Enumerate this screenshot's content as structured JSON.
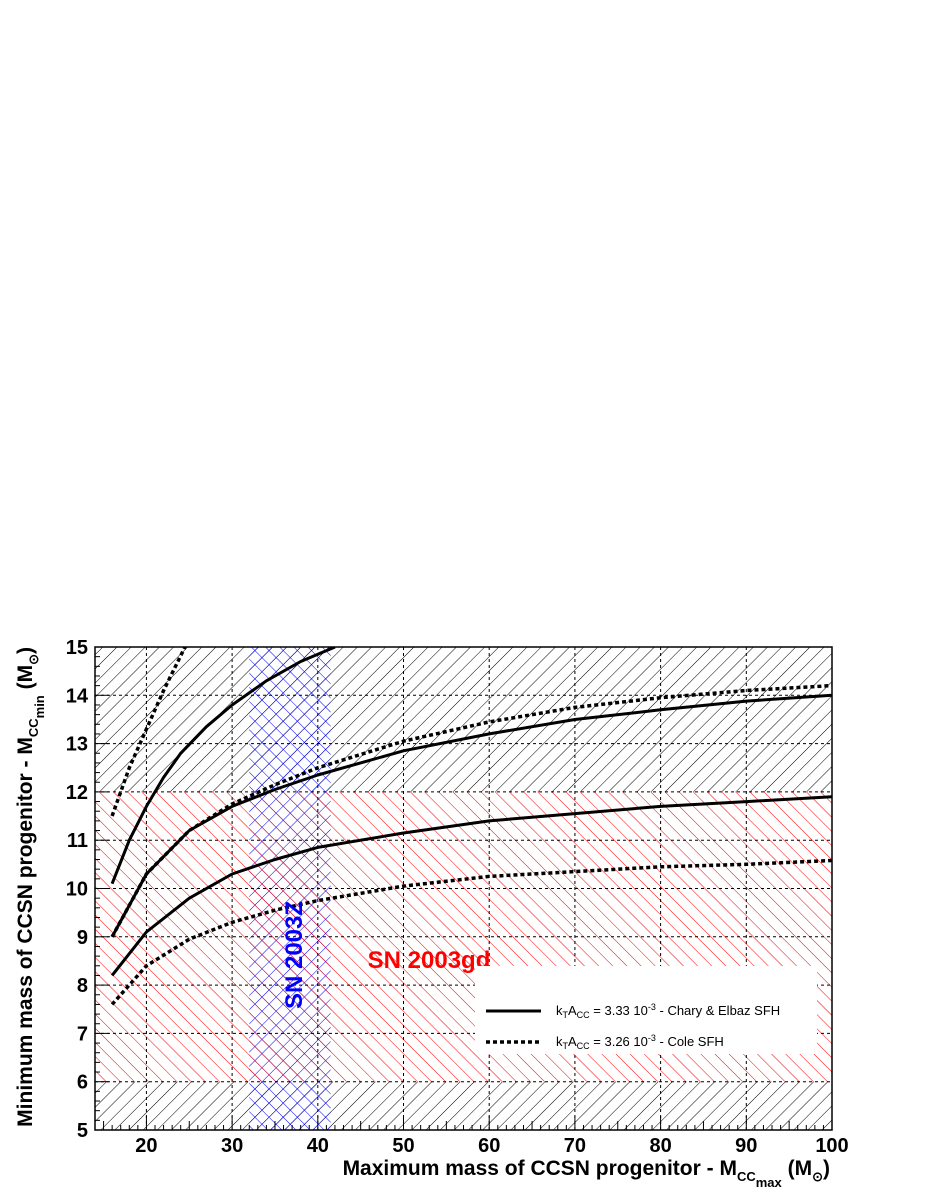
{
  "chart_data": {
    "type": "line",
    "xlabel": {
      "main": "Maximum mass of CCSN progenitor - M",
      "sub": "CC",
      "subsub": "max",
      "unit_open": " (M",
      "unit_sym": "⊙",
      "unit_close": ")"
    },
    "ylabel": {
      "main": "Minimum mass of CCSN progenitor - M",
      "sub": "CC",
      "subsub": "min",
      "unit_open": " (M",
      "unit_sym": "⊙",
      "unit_close": ")"
    },
    "xlim": [
      14,
      100
    ],
    "ylim": [
      5,
      15
    ],
    "xticks": [
      "20",
      "30",
      "40",
      "50",
      "60",
      "70",
      "80",
      "90",
      "100"
    ],
    "yticks": [
      "5",
      "6",
      "7",
      "8",
      "9",
      "10",
      "11",
      "12",
      "13",
      "14",
      "15"
    ],
    "grid": true,
    "legend": {
      "position": "lower-right",
      "entries": [
        {
          "pre": "k",
          "pre_sub": "T",
          "mid": "A",
          "mid_sub": "CC",
          "text": " = 3.33 10",
          "exp": "-3",
          "post": " - Chary & Elbaz SFH",
          "style": "solid"
        },
        {
          "pre": "k",
          "pre_sub": "T",
          "mid": "A",
          "mid_sub": "CC",
          "text": " = 3.26 10",
          "exp": "-3",
          "post": " - Cole SFH",
          "style": "dotted"
        }
      ]
    },
    "bands": [
      {
        "label": "SN 2003Z",
        "orientation": "vertical",
        "x_range": [
          32,
          41.5
        ],
        "color": "#0000ff"
      },
      {
        "label": "SN 2003gd",
        "orientation": "horizontal",
        "y_range": [
          6,
          12
        ],
        "color": "#ff0000"
      }
    ],
    "excluded_regions": [
      {
        "y_range": [
          12,
          15
        ],
        "color": "#000000"
      },
      {
        "y_range": [
          5,
          6
        ],
        "color": "#000000"
      }
    ],
    "series": [
      {
        "style": "solid",
        "x": [
          16,
          18,
          20,
          22,
          24,
          27,
          30,
          34,
          38,
          42
        ],
        "y": [
          10.1,
          11.0,
          11.7,
          12.3,
          12.8,
          13.35,
          13.8,
          14.3,
          14.7,
          15.0
        ]
      },
      {
        "style": "solid",
        "x": [
          16,
          20,
          25,
          30,
          35,
          40,
          50,
          60,
          70,
          80,
          90,
          100
        ],
        "y": [
          9.0,
          10.3,
          11.2,
          11.7,
          12.05,
          12.35,
          12.85,
          13.2,
          13.5,
          13.7,
          13.88,
          14.0
        ]
      },
      {
        "style": "solid",
        "x": [
          16,
          20,
          25,
          30,
          35,
          40,
          50,
          60,
          70,
          80,
          90,
          100
        ],
        "y": [
          8.2,
          9.1,
          9.8,
          10.3,
          10.6,
          10.85,
          11.15,
          11.4,
          11.55,
          11.7,
          11.8,
          11.9
        ]
      },
      {
        "style": "dotted",
        "x": [
          16,
          18,
          20,
          22,
          24.5
        ],
        "y": [
          11.5,
          12.5,
          13.3,
          14.1,
          15.0
        ]
      },
      {
        "style": "dotted",
        "x": [
          16,
          20,
          25,
          30,
          35,
          40,
          50,
          60,
          70,
          80,
          90,
          100
        ],
        "y": [
          9.0,
          10.3,
          11.2,
          11.75,
          12.15,
          12.5,
          13.05,
          13.45,
          13.75,
          13.95,
          14.1,
          14.2
        ]
      },
      {
        "style": "dotted",
        "x": [
          16,
          20,
          25,
          30,
          35,
          40,
          50,
          60,
          70,
          80,
          90,
          100
        ],
        "y": [
          7.6,
          8.4,
          8.95,
          9.3,
          9.55,
          9.75,
          10.05,
          10.25,
          10.35,
          10.45,
          10.5,
          10.58
        ]
      }
    ]
  }
}
